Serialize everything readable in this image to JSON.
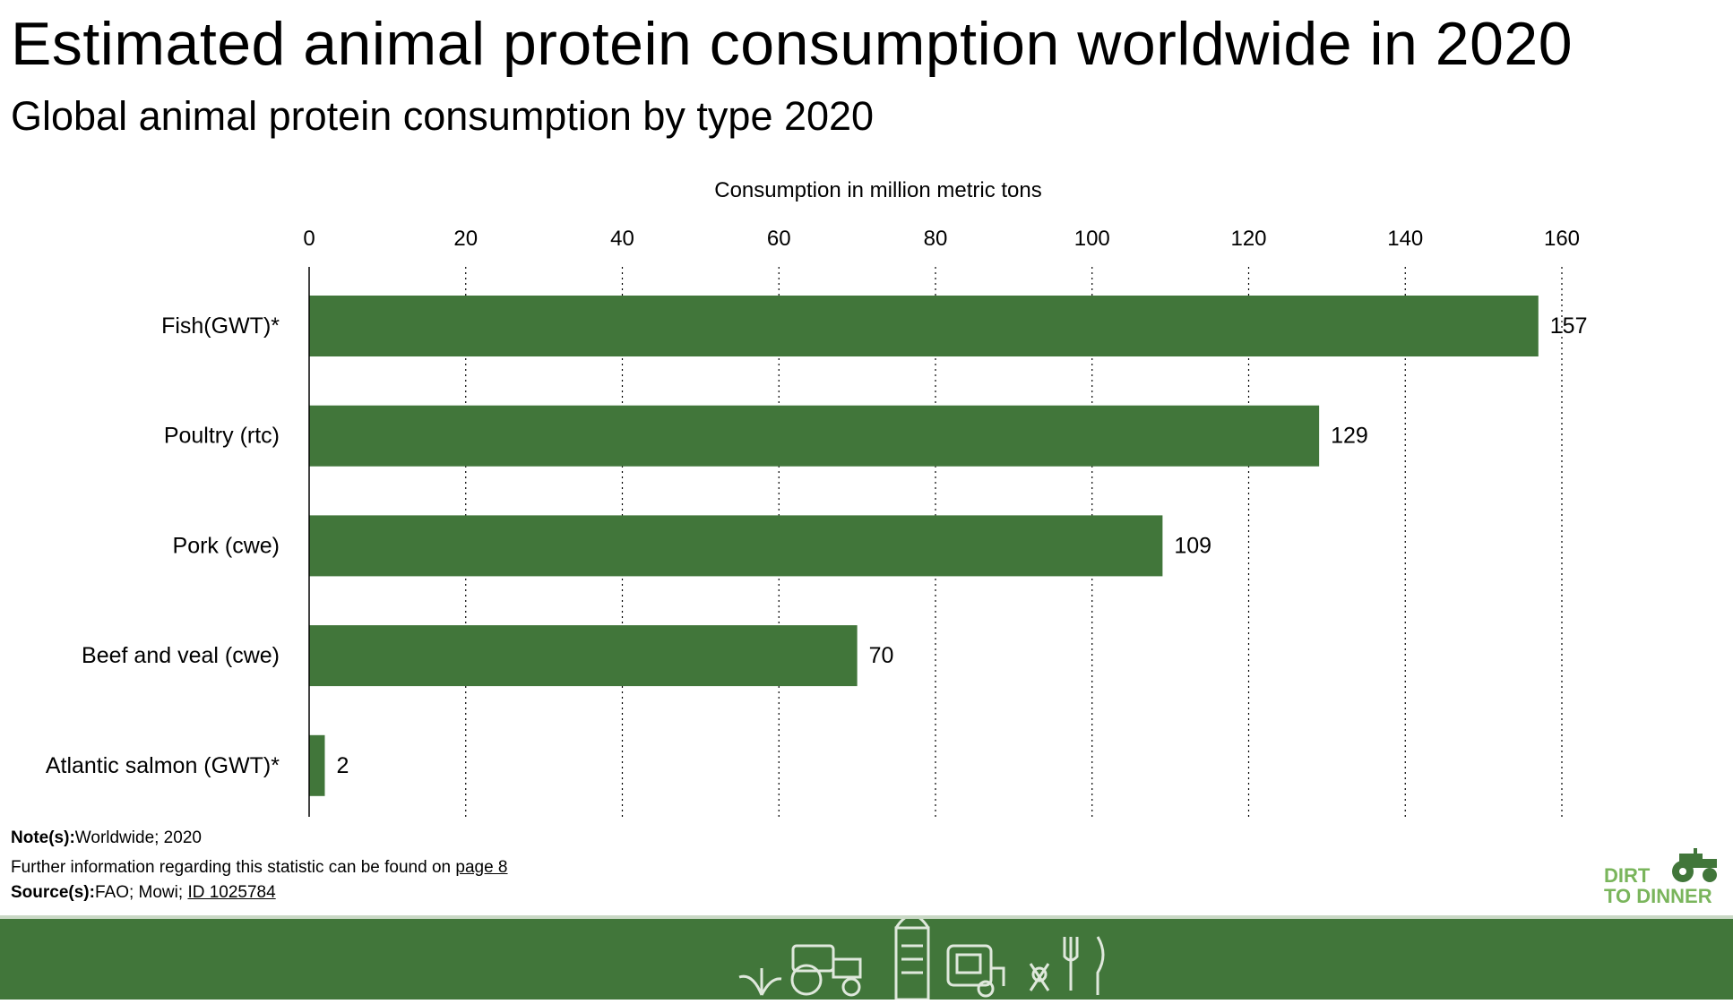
{
  "title": "Estimated animal protein consumption worldwide in 2020",
  "subtitle": "Global animal protein consumption by type 2020",
  "chart_data": {
    "type": "bar",
    "orientation": "horizontal",
    "xlabel": "Consumption in million metric tons",
    "xlim": [
      0,
      160
    ],
    "xticks": [
      0,
      20,
      40,
      60,
      80,
      100,
      120,
      140,
      160
    ],
    "categories": [
      "Fish(GWT)*",
      "Poultry (rtc)",
      "Pork (cwe)",
      "Beef and veal (cwe)",
      "Atlantic salmon (GWT)*"
    ],
    "values": [
      157,
      129,
      109,
      70,
      2
    ],
    "data_labels": [
      "157",
      "129",
      "109",
      "70",
      "2"
    ],
    "grid": "vertical dotted",
    "bar_color": "#41763a"
  },
  "notes": {
    "note_label": "Note(s):",
    "note_text": "Worldwide; 2020",
    "further": "Further information regarding this statistic can be found on",
    "further_link": "page 8",
    "source_label": "Source(s):",
    "source_text": "FAO; Mowi; ",
    "source_link": "ID 1025784"
  },
  "logo": {
    "line1": "DIRT",
    "line2": "TO DINNER"
  },
  "colors": {
    "bar": "#41763a",
    "footer": "#41763a",
    "logo": "#7ab55c"
  }
}
